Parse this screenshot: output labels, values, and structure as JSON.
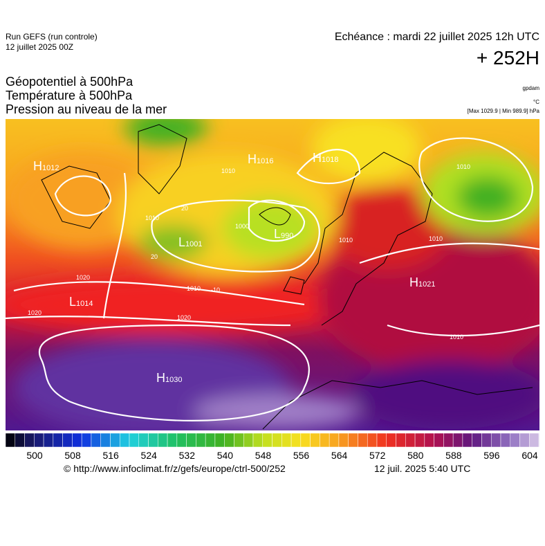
{
  "header": {
    "run": "Run GEFS (run controle)",
    "run_date": "12 juillet 2025 00Z",
    "echeance": "Echéance : mardi 22 juillet 2025 12h UTC",
    "lead": "+ 252H",
    "fields": [
      "Géopotentiel à 500hPa",
      "Température à 500hPa",
      "Pression au niveau de la mer"
    ],
    "units": [
      "gpdam",
      "°C",
      "[Max 1029.9 | Min 989.9] hPa"
    ]
  },
  "map": {
    "centers": [
      {
        "letter": "H",
        "value": "1012"
      },
      {
        "letter": "H",
        "value": "1016"
      },
      {
        "letter": "H",
        "value": "1018"
      },
      {
        "letter": "L",
        "value": "1001"
      },
      {
        "letter": "L",
        "value": "990"
      },
      {
        "letter": "H",
        "value": "1021"
      },
      {
        "letter": "L",
        "value": "1014"
      },
      {
        "letter": "H",
        "value": "1030"
      }
    ],
    "contour_labels": [
      "1010",
      "1010",
      "1010",
      "1020",
      "1020",
      "1020",
      "1010",
      "1000",
      "1010",
      "1010",
      "20",
      "20",
      "-10",
      "1010"
    ]
  },
  "colorbar": {
    "ticks": [
      500,
      508,
      516,
      524,
      532,
      540,
      548,
      556,
      564,
      572,
      580,
      588,
      596,
      604
    ]
  },
  "footer": {
    "source": "© http://www.infoclimat.fr/z/gefs/europe/ctrl-500/252",
    "time": "12 juil. 2025  5:40 UTC"
  }
}
